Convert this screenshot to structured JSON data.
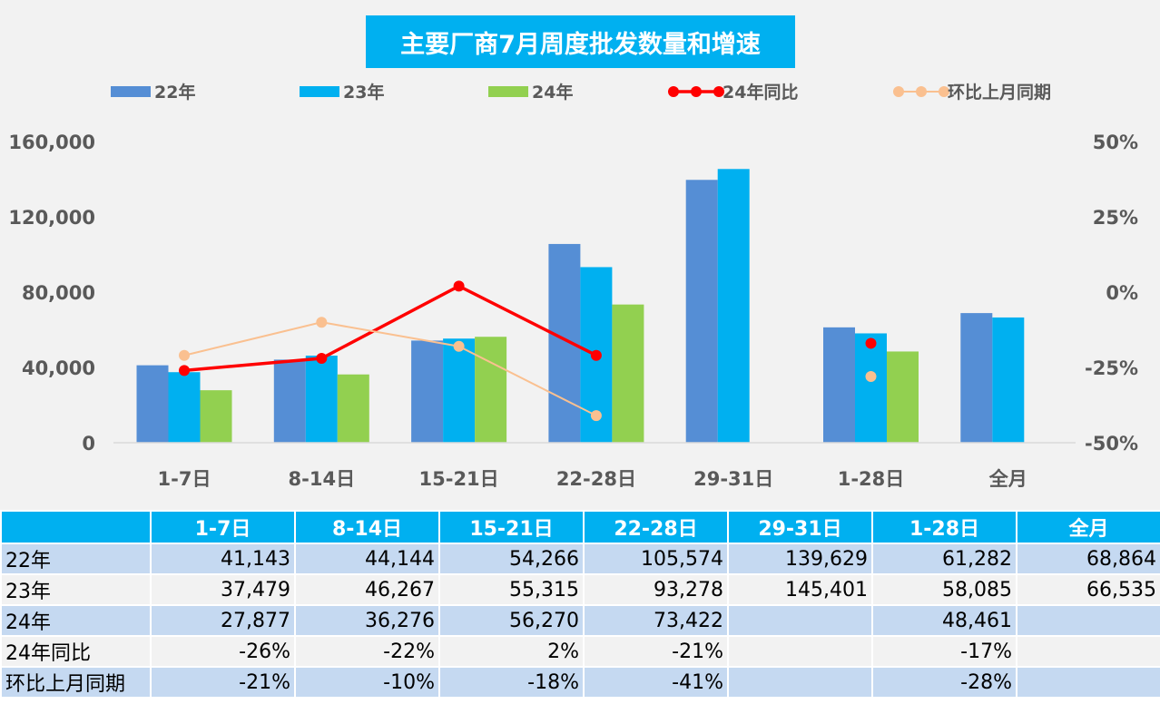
{
  "chart_data": {
    "type": "bar",
    "title": "主要厂商7月周度批发数量和增速",
    "categories": [
      "1-7日",
      "8-14日",
      "15-21日",
      "22-28日",
      "29-31日",
      "1-28日",
      "全月"
    ],
    "series": [
      {
        "name": "22年",
        "type": "bar",
        "axis": "left",
        "color": "#558ED5",
        "values": [
          41143,
          44144,
          54266,
          105574,
          139629,
          61282,
          68864
        ]
      },
      {
        "name": "23年",
        "type": "bar",
        "axis": "left",
        "color": "#00B0F0",
        "values": [
          37479,
          46267,
          55315,
          93278,
          145401,
          58085,
          66535
        ]
      },
      {
        "name": "24年",
        "type": "bar",
        "axis": "left",
        "color": "#92D050",
        "values": [
          27877,
          36276,
          56270,
          73422,
          null,
          48461,
          null
        ]
      },
      {
        "name": "24年同比",
        "type": "line",
        "axis": "right",
        "color": "#FF0000",
        "values": [
          -26,
          -22,
          2,
          -21,
          null,
          -17,
          null
        ]
      },
      {
        "name": "环比上月同期",
        "type": "line",
        "axis": "right",
        "color": "#FAC090",
        "values": [
          -21,
          -10,
          -18,
          -41,
          null,
          -28,
          null
        ]
      }
    ],
    "left_axis": {
      "range": [
        0,
        160000
      ],
      "ticks": [
        "0",
        "40,000",
        "80,000",
        "120,000",
        "160,000"
      ]
    },
    "right_axis": {
      "range": [
        -50,
        50
      ],
      "ticks": [
        "-50%",
        "-25%",
        "0%",
        "25%",
        "50%"
      ]
    },
    "legend_position": "top"
  },
  "table": {
    "header": [
      "",
      "1-7日",
      "8-14日",
      "15-21日",
      "22-28日",
      "29-31日",
      "1-28日",
      "全月"
    ],
    "rows": [
      [
        "22年",
        "41,143",
        "44,144",
        "54,266",
        "105,574",
        "139,629",
        "61,282",
        "68,864"
      ],
      [
        "23年",
        "37,479",
        "46,267",
        "55,315",
        "93,278",
        "145,401",
        "58,085",
        "66,535"
      ],
      [
        "24年",
        "27,877",
        "36,276",
        "56,270",
        "73,422",
        "",
        "48,461",
        ""
      ],
      [
        "24年同比",
        "-26%",
        "-22%",
        "2%",
        "-21%",
        "",
        "-17%",
        ""
      ],
      [
        "环比上月同期",
        "-21%",
        "-10%",
        "-18%",
        "-41%",
        "",
        "-28%",
        ""
      ]
    ]
  }
}
